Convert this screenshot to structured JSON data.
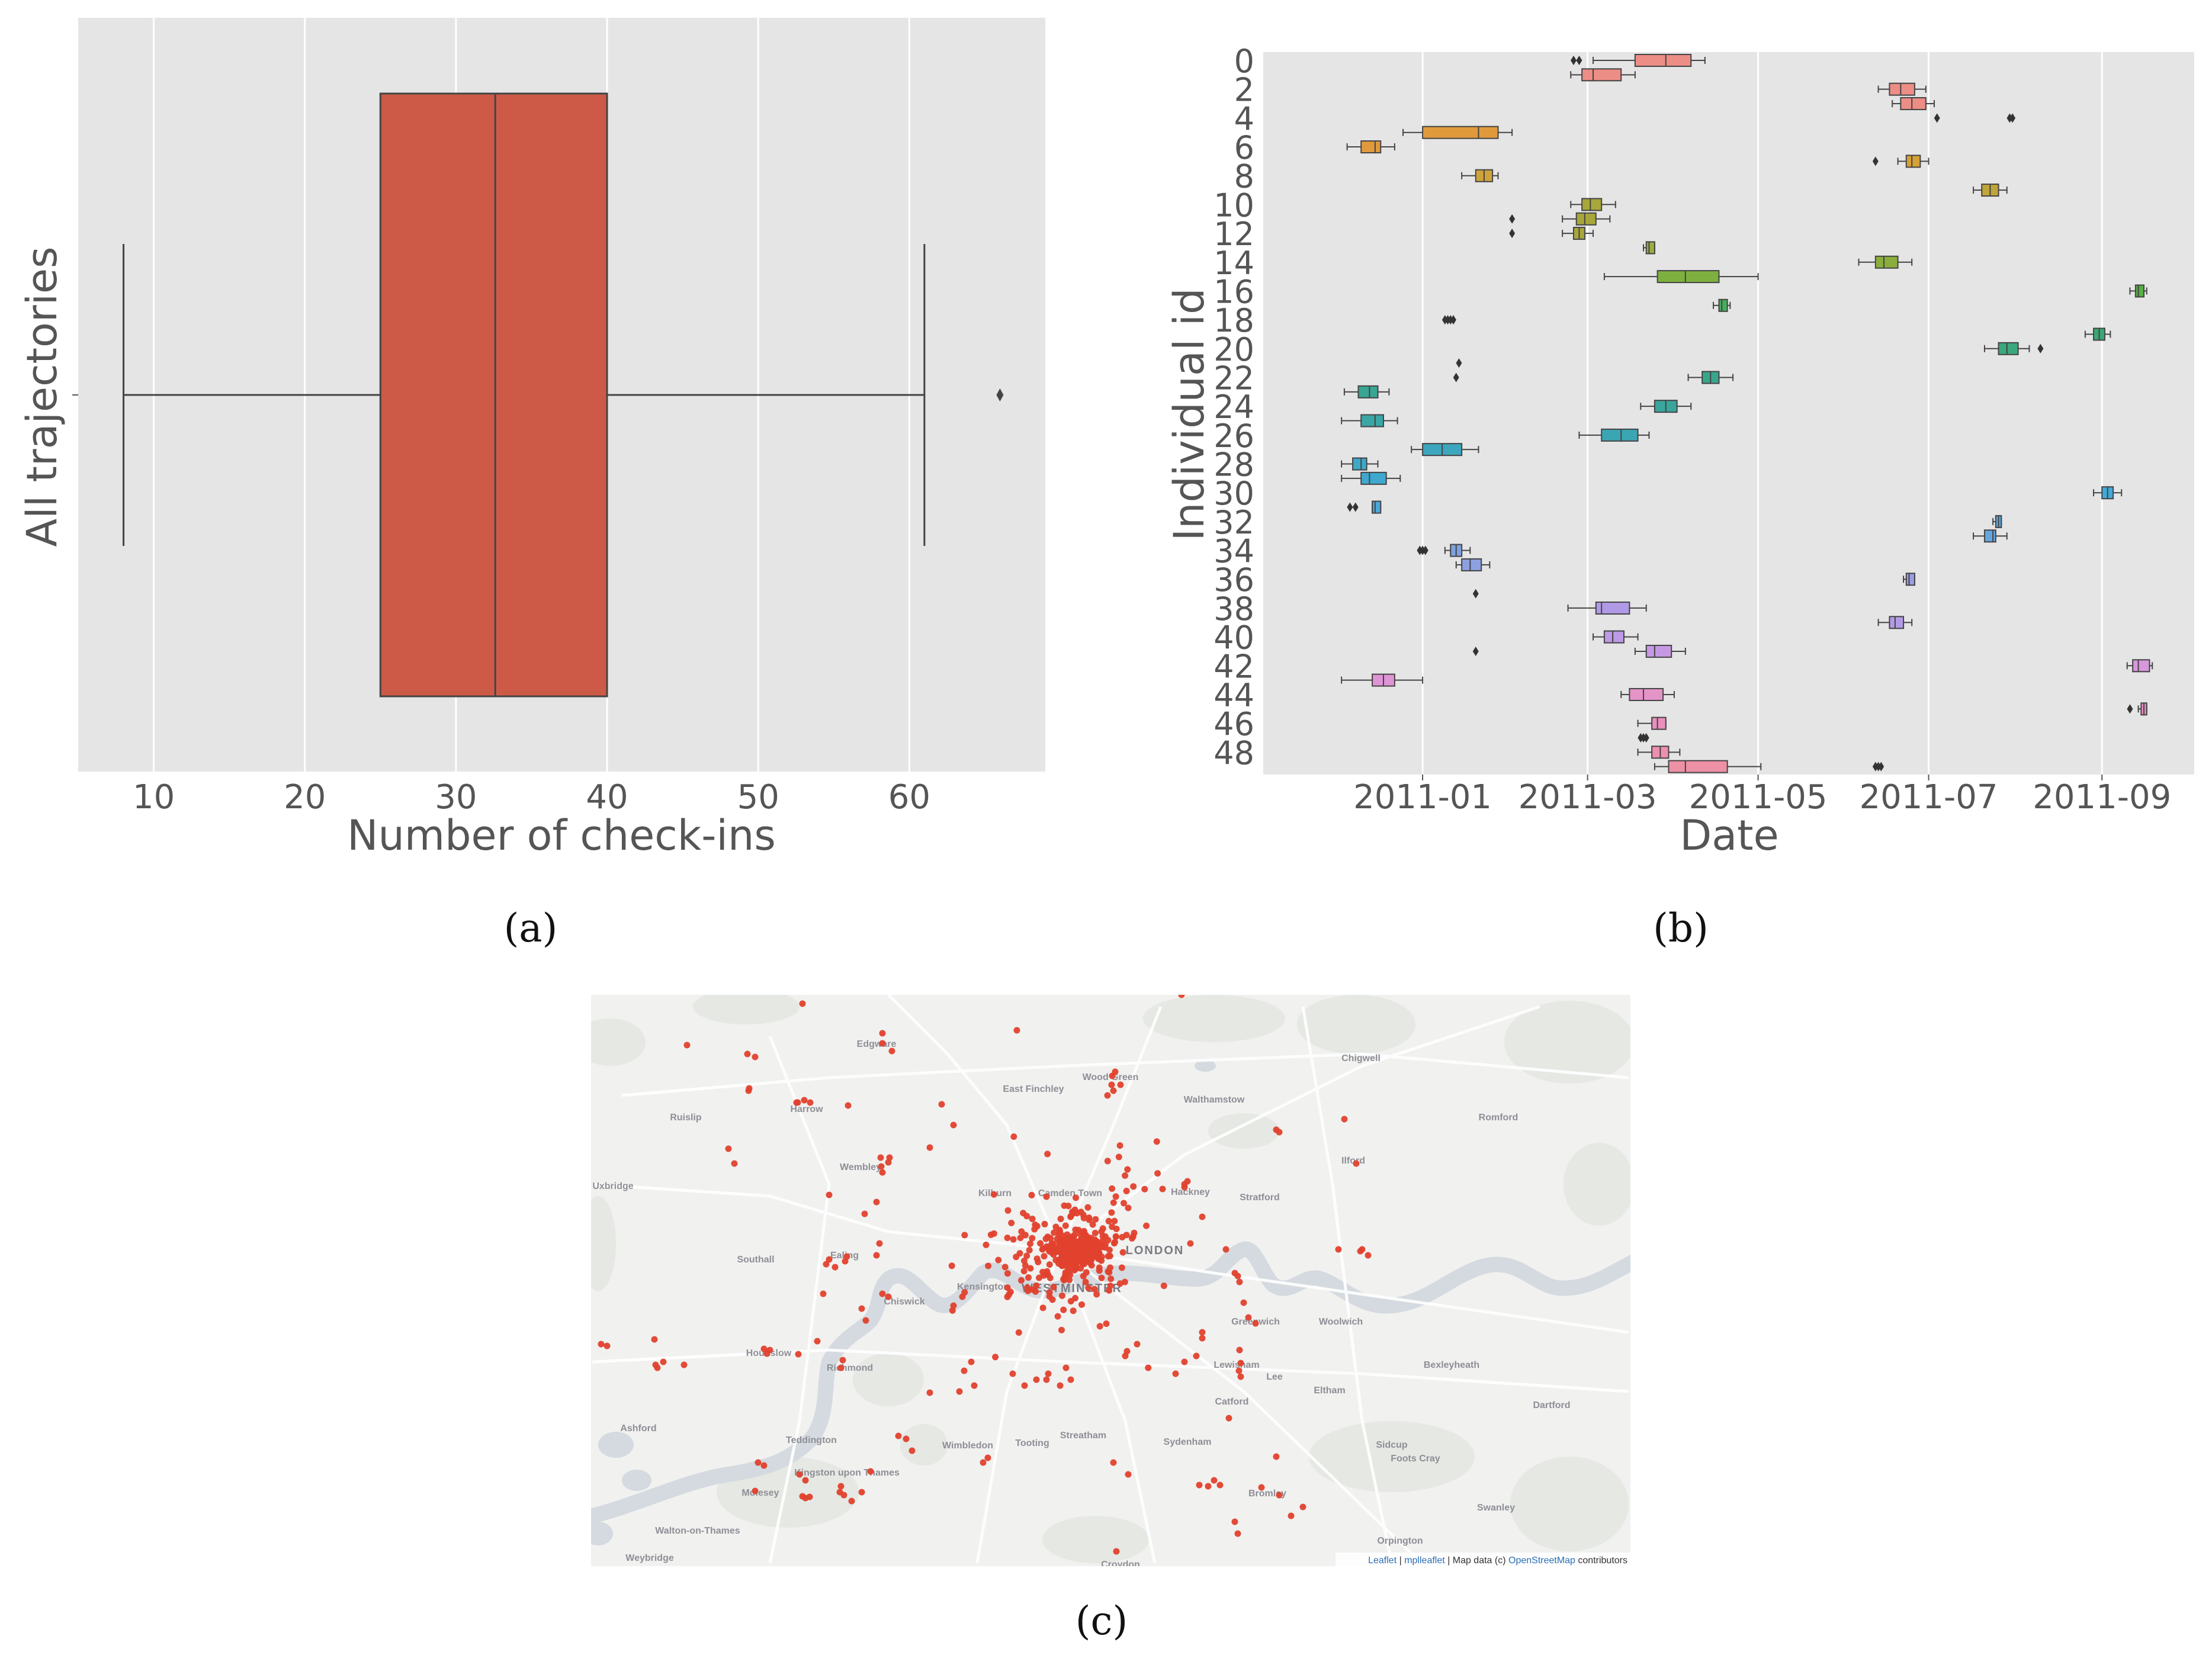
{
  "chart_data": [
    {
      "type": "box",
      "panel_label": "(a)",
      "xlabel": "Number of check-ins",
      "ylabel": "All trajectories",
      "xlim": [
        5,
        69
      ],
      "xticks": [
        10,
        20,
        30,
        40,
        50,
        60
      ],
      "grid": true,
      "color": "#cd5a47",
      "box": {
        "min": 8,
        "q1": 25,
        "median": 32.6,
        "q3": 40,
        "max": 61,
        "outliers": [
          66
        ]
      }
    },
    {
      "type": "box",
      "orientation": "horizontal",
      "panel_label": "(b)",
      "xlabel": "Date",
      "ylabel": "Individual id",
      "xlim": [
        "2010-11-05",
        "2011-10-04"
      ],
      "xticks": [
        "2011-01",
        "2011-03",
        "2011-05",
        "2011-07",
        "2011-09"
      ],
      "y_ticks": [
        "0",
        "2",
        "4",
        "6",
        "8",
        "10",
        "12",
        "14",
        "16",
        "18",
        "20",
        "22",
        "24",
        "26",
        "28",
        "30",
        "32",
        "34",
        "36",
        "38",
        "40",
        "42",
        "44",
        "46",
        "48"
      ],
      "grid": true,
      "boxes": [
        {
          "id": 0,
          "color": "#ec8d86",
          "q1": "2011-03-18",
          "median": "2011-03-29",
          "q3": "2011-04-07",
          "min": "2011-03-03",
          "max": "2011-04-12",
          "outliers": [
            "2011-02-24",
            "2011-02-26"
          ]
        },
        {
          "id": 1,
          "color": "#ec8d86",
          "q1": "2011-02-27",
          "median": "2011-03-03",
          "q3": "2011-03-13",
          "min": "2011-02-23",
          "max": "2011-03-18",
          "outliers": []
        },
        {
          "id": 2,
          "color": "#ec8d86",
          "q1": "2011-06-17",
          "median": "2011-06-21",
          "q3": "2011-06-26",
          "min": "2011-06-13",
          "max": "2011-06-30",
          "outliers": []
        },
        {
          "id": 3,
          "color": "#ec8d86",
          "q1": "2011-06-21",
          "median": "2011-06-25",
          "q3": "2011-06-30",
          "min": "2011-06-18",
          "max": "2011-07-03",
          "outliers": []
        },
        {
          "id": 4,
          "color": "#e58f63",
          "q1": null,
          "median": null,
          "q3": null,
          "min": null,
          "max": null,
          "outliers": [
            "2011-07-04",
            "2011-07-30",
            "2011-07-31"
          ]
        },
        {
          "id": 5,
          "color": "#e09a3c",
          "q1": "2011-01-01",
          "median": "2011-01-21",
          "q3": "2011-01-28",
          "min": "2010-12-25",
          "max": "2011-02-02",
          "outliers": []
        },
        {
          "id": 6,
          "color": "#e09a3c",
          "q1": "2010-12-10",
          "median": "2010-12-15",
          "q3": "2010-12-17",
          "min": "2010-12-05",
          "max": "2010-12-22",
          "outliers": []
        },
        {
          "id": 7,
          "color": "#d5a035",
          "q1": "2011-06-23",
          "median": "2011-06-25",
          "q3": "2011-06-28",
          "min": "2011-06-20",
          "max": "2011-07-01",
          "outliers": [
            "2011-06-12"
          ]
        },
        {
          "id": 8,
          "color": "#cfa33a",
          "q1": "2011-01-20",
          "median": "2011-01-23",
          "q3": "2011-01-26",
          "min": "2011-01-15",
          "max": "2011-01-28",
          "outliers": []
        },
        {
          "id": 9,
          "color": "#bfa53a",
          "q1": "2011-07-20",
          "median": "2011-07-23",
          "q3": "2011-07-26",
          "min": "2011-07-17",
          "max": "2011-07-29",
          "outliers": []
        },
        {
          "id": 10,
          "color": "#a8a73a",
          "q1": "2011-02-27",
          "median": "2011-03-02",
          "q3": "2011-03-06",
          "min": "2011-02-23",
          "max": "2011-03-11",
          "outliers": []
        },
        {
          "id": 11,
          "color": "#a8a73a",
          "q1": "2011-02-25",
          "median": "2011-02-28",
          "q3": "2011-03-04",
          "min": "2011-02-20",
          "max": "2011-03-09",
          "outliers": [
            "2011-02-02"
          ]
        },
        {
          "id": 12,
          "color": "#a8a73a",
          "q1": "2011-02-24",
          "median": "2011-02-26",
          "q3": "2011-02-28",
          "min": "2011-02-20",
          "max": "2011-03-03",
          "outliers": [
            "2011-02-02"
          ]
        },
        {
          "id": 13,
          "color": "#9aad42",
          "q1": "2011-03-22",
          "median": "2011-03-23",
          "q3": "2011-03-25",
          "min": "2011-03-21",
          "max": "2011-03-25",
          "outliers": []
        },
        {
          "id": 14,
          "color": "#8aae3c",
          "q1": "2011-06-12",
          "median": "2011-06-15",
          "q3": "2011-06-20",
          "min": "2011-06-06",
          "max": "2011-06-25",
          "outliers": []
        },
        {
          "id": 15,
          "color": "#7eb03f",
          "q1": "2011-03-26",
          "median": "2011-04-05",
          "q3": "2011-04-17",
          "min": "2011-03-07",
          "max": "2011-05-01",
          "outliers": []
        },
        {
          "id": 16,
          "color": "#55af45",
          "q1": "2011-09-13",
          "median": "2011-09-14",
          "q3": "2011-09-16",
          "min": "2011-09-11",
          "max": "2011-09-17",
          "outliers": []
        },
        {
          "id": 17,
          "color": "#45ad5d",
          "q1": "2011-04-17",
          "median": "2011-04-18",
          "q3": "2011-04-20",
          "min": "2011-04-15",
          "max": "2011-04-21",
          "outliers": []
        },
        {
          "id": 18,
          "color": "#3aa86a",
          "q1": null,
          "median": null,
          "q3": null,
          "min": null,
          "max": null,
          "outliers": [
            "2011-01-09",
            "2011-01-10",
            "2011-01-11",
            "2011-01-12"
          ]
        },
        {
          "id": 19,
          "color": "#3ba775",
          "q1": "2011-08-29",
          "median": "2011-08-31",
          "q3": "2011-09-02",
          "min": "2011-08-26",
          "max": "2011-09-04",
          "outliers": []
        },
        {
          "id": 20,
          "color": "#3aa77c",
          "q1": "2011-07-26",
          "median": "2011-07-29",
          "q3": "2011-08-02",
          "min": "2011-07-21",
          "max": "2011-08-06",
          "outliers": [
            "2011-08-10"
          ]
        },
        {
          "id": 21,
          "color": "#38a683",
          "q1": null,
          "median": null,
          "q3": null,
          "min": null,
          "max": null,
          "outliers": [
            "2011-01-14"
          ]
        },
        {
          "id": 22,
          "color": "#38a68a",
          "q1": "2011-04-11",
          "median": "2011-04-14",
          "q3": "2011-04-17",
          "min": "2011-04-06",
          "max": "2011-04-22",
          "outliers": [
            "2011-01-13"
          ]
        },
        {
          "id": 23,
          "color": "#39a593",
          "q1": "2010-12-09",
          "median": "2010-12-13",
          "q3": "2010-12-16",
          "min": "2010-12-04",
          "max": "2010-12-20",
          "outliers": []
        },
        {
          "id": 24,
          "color": "#3aa59c",
          "q1": "2011-03-25",
          "median": "2011-03-29",
          "q3": "2011-04-02",
          "min": "2011-03-20",
          "max": "2011-04-07",
          "outliers": []
        },
        {
          "id": 25,
          "color": "#3aa6a6",
          "q1": "2010-12-10",
          "median": "2010-12-15",
          "q3": "2010-12-18",
          "min": "2010-12-03",
          "max": "2010-12-23",
          "outliers": []
        },
        {
          "id": 26,
          "color": "#3ba6b3",
          "q1": "2011-03-06",
          "median": "2011-03-13",
          "q3": "2011-03-19",
          "min": "2011-02-26",
          "max": "2011-03-23",
          "outliers": []
        },
        {
          "id": 27,
          "color": "#3ca6be",
          "q1": "2011-01-01",
          "median": "2011-01-08",
          "q3": "2011-01-15",
          "min": "2010-12-28",
          "max": "2011-01-21",
          "outliers": []
        },
        {
          "id": 28,
          "color": "#3da8c8",
          "q1": "2010-12-07",
          "median": "2010-12-10",
          "q3": "2010-12-12",
          "min": "2010-12-03",
          "max": "2010-12-16",
          "outliers": []
        },
        {
          "id": 29,
          "color": "#3ea8cf",
          "q1": "2010-12-10",
          "median": "2010-12-13",
          "q3": "2010-12-19",
          "min": "2010-12-03",
          "max": "2010-12-24",
          "outliers": []
        },
        {
          "id": 30,
          "color": "#41a9d8",
          "q1": "2011-09-01",
          "median": "2011-09-03",
          "q3": "2011-09-05",
          "min": "2011-08-29",
          "max": "2011-09-08",
          "outliers": []
        },
        {
          "id": 31,
          "color": "#4ca8dc",
          "q1": "2010-12-14",
          "median": "2010-12-15",
          "q3": "2010-12-17",
          "min": "2010-12-14",
          "max": "2010-12-17",
          "outliers": [
            "2010-12-06",
            "2010-12-08"
          ]
        },
        {
          "id": 32,
          "color": "#5aa7de",
          "q1": "2011-07-25",
          "median": "2011-07-26",
          "q3": "2011-07-27",
          "min": "2011-07-24",
          "max": "2011-07-27",
          "outliers": []
        },
        {
          "id": 33,
          "color": "#64a5df",
          "q1": "2011-07-21",
          "median": "2011-07-24",
          "q3": "2011-07-25",
          "min": "2011-07-17",
          "max": "2011-07-29",
          "outliers": []
        },
        {
          "id": 34,
          "color": "#7fa2e0",
          "q1": "2011-01-11",
          "median": "2011-01-13",
          "q3": "2011-01-15",
          "min": "2011-01-09",
          "max": "2011-01-18",
          "outliers": [
            "2010-12-31",
            "2011-01-01",
            "2011-01-02"
          ]
        },
        {
          "id": 35,
          "color": "#8da0e1",
          "q1": "2011-01-15",
          "median": "2011-01-18",
          "q3": "2011-01-22",
          "min": "2011-01-13",
          "max": "2011-01-25",
          "outliers": []
        },
        {
          "id": 36,
          "color": "#9c9ee2",
          "q1": "2011-06-23",
          "median": "2011-06-24",
          "q3": "2011-06-26",
          "min": "2011-06-22",
          "max": "2011-06-26",
          "outliers": []
        },
        {
          "id": 37,
          "color": "#a79ce4",
          "q1": null,
          "median": null,
          "q3": null,
          "min": null,
          "max": null,
          "outliers": [
            "2011-01-20"
          ]
        },
        {
          "id": 38,
          "color": "#b09ae6",
          "q1": "2011-03-04",
          "median": "2011-03-06",
          "q3": "2011-03-16",
          "min": "2011-02-22",
          "max": "2011-03-22",
          "outliers": []
        },
        {
          "id": 39,
          "color": "#b39ae6",
          "q1": "2011-06-17",
          "median": "2011-06-19",
          "q3": "2011-06-22",
          "min": "2011-06-13",
          "max": "2011-06-25",
          "outliers": []
        },
        {
          "id": 40,
          "color": "#bd99e6",
          "q1": "2011-03-07",
          "median": "2011-03-10",
          "q3": "2011-03-14",
          "min": "2011-03-03",
          "max": "2011-03-19",
          "outliers": []
        },
        {
          "id": 41,
          "color": "#c698e4",
          "q1": "2011-03-22",
          "median": "2011-03-25",
          "q3": "2011-03-31",
          "min": "2011-03-18",
          "max": "2011-04-05",
          "outliers": [
            "2011-01-20"
          ]
        },
        {
          "id": 42,
          "color": "#d897dd",
          "q1": "2011-09-12",
          "median": "2011-09-14",
          "q3": "2011-09-18",
          "min": "2011-09-10",
          "max": "2011-09-19",
          "outliers": []
        },
        {
          "id": 43,
          "color": "#df95d5",
          "q1": "2010-12-14",
          "median": "2010-12-18",
          "q3": "2010-12-22",
          "min": "2010-12-03",
          "max": "2011-01-01",
          "outliers": []
        },
        {
          "id": 44,
          "color": "#e594c8",
          "q1": "2011-03-16",
          "median": "2011-03-21",
          "q3": "2011-03-28",
          "min": "2011-03-13",
          "max": "2011-04-01",
          "outliers": []
        },
        {
          "id": 45,
          "color": "#e88fc2",
          "q1": "2011-09-15",
          "median": "2011-09-16",
          "q3": "2011-09-17",
          "min": "2011-09-14",
          "max": "2011-09-17",
          "outliers": [
            "2011-09-11"
          ]
        },
        {
          "id": 46,
          "color": "#ea8fbd",
          "q1": "2011-03-24",
          "median": "2011-03-26",
          "q3": "2011-03-29",
          "min": "2011-03-19",
          "max": "2011-03-29",
          "outliers": []
        },
        {
          "id": 47,
          "color": "#ec8fb3",
          "q1": null,
          "median": null,
          "q3": null,
          "min": null,
          "max": null,
          "outliers": [
            "2011-03-20",
            "2011-03-21",
            "2011-03-22"
          ]
        },
        {
          "id": 48,
          "color": "#ed90ad",
          "q1": "2011-03-24",
          "median": "2011-03-27",
          "q3": "2011-03-30",
          "min": "2011-03-19",
          "max": "2011-04-03",
          "outliers": []
        },
        {
          "id": 49,
          "color": "#ee90a6",
          "q1": "2011-03-30",
          "median": "2011-04-05",
          "q3": "2011-04-20",
          "min": "2011-03-25",
          "max": "2011-05-02",
          "outliers": [
            "2011-06-12",
            "2011-06-13",
            "2011-06-14"
          ]
        }
      ]
    },
    {
      "type": "scatter",
      "panel_label": "(c)",
      "point_color": "#e0412d",
      "description_visible": "map of London with check-in points",
      "attribution": {
        "leaflet": "Leaflet",
        "mplleaflet": "mplleaflet",
        "map_data_text": " | Map data (c) ",
        "osm": "OpenStreetMap",
        "contributors": " contributors"
      },
      "places": [
        {
          "name": "Chigwell"
        },
        {
          "name": "Edgware"
        },
        {
          "name": "East Finchley"
        },
        {
          "name": "Wood Green"
        },
        {
          "name": "Walthamstow"
        },
        {
          "name": "Ruislip"
        },
        {
          "name": "Harrow"
        },
        {
          "name": "Romford"
        },
        {
          "name": "Wembley"
        },
        {
          "name": "Ilford"
        },
        {
          "name": "Uxbridge"
        },
        {
          "name": "Kilburn"
        },
        {
          "name": "Camden Town"
        },
        {
          "name": "Hackney"
        },
        {
          "name": "Stratford"
        },
        {
          "name": "Southall"
        },
        {
          "name": "Ealing"
        },
        {
          "name": "LONDON"
        },
        {
          "name": "Chiswick"
        },
        {
          "name": "Kensington"
        },
        {
          "name": "WESTMINSTER"
        },
        {
          "name": "Greenwich"
        },
        {
          "name": "Woolwich"
        },
        {
          "name": "Hounslow"
        },
        {
          "name": "Richmond"
        },
        {
          "name": "Lewisham"
        },
        {
          "name": "Lee"
        },
        {
          "name": "Bexleyheath"
        },
        {
          "name": "Catford"
        },
        {
          "name": "Eltham"
        },
        {
          "name": "Ashford"
        },
        {
          "name": "Teddington"
        },
        {
          "name": "Wimbledon"
        },
        {
          "name": "Tooting"
        },
        {
          "name": "Streatham"
        },
        {
          "name": "Sydenham"
        },
        {
          "name": "Sidcup"
        },
        {
          "name": "Foots Cray"
        },
        {
          "name": "Dartford"
        },
        {
          "name": "Kingston upon Thames"
        },
        {
          "name": "Molesey"
        },
        {
          "name": "Bromley"
        },
        {
          "name": "Swanley"
        },
        {
          "name": "Walton-on-Thames"
        },
        {
          "name": "Orpington"
        },
        {
          "name": "Weybridge"
        },
        {
          "name": "Croydon"
        }
      ]
    }
  ]
}
